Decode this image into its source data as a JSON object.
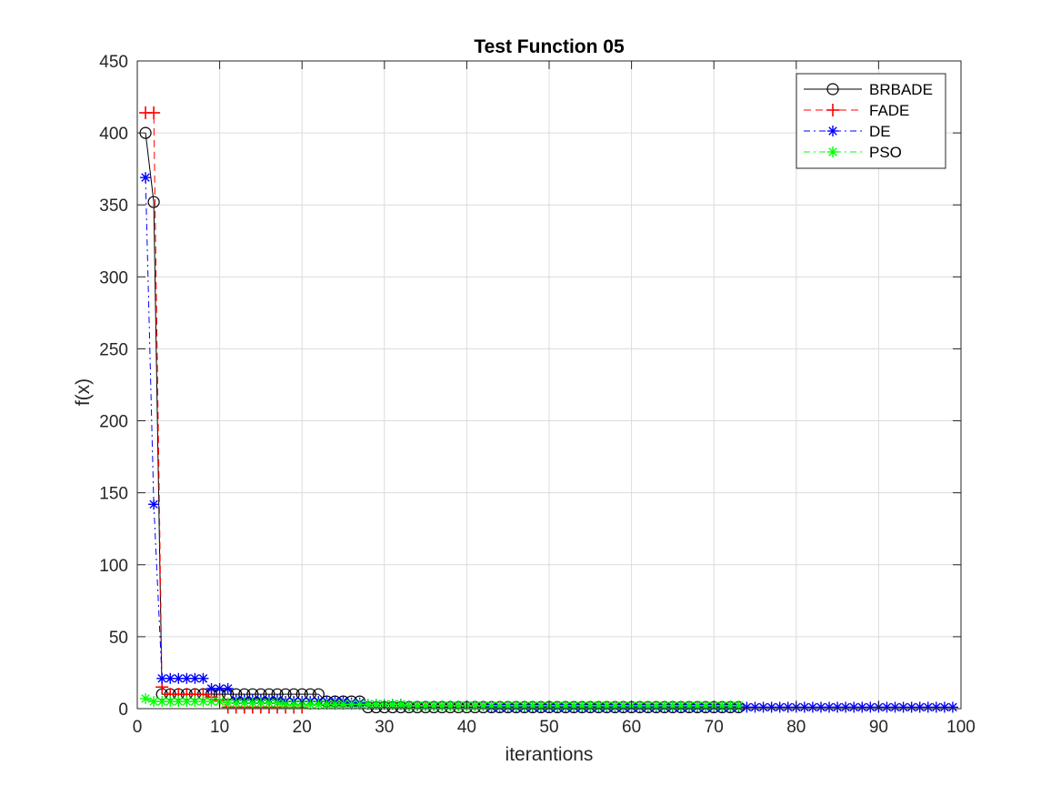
{
  "chart_data": {
    "type": "line",
    "title": "Test Function 05",
    "xlabel": "iterantions",
    "ylabel": "f(x)",
    "xlim": [
      0,
      100
    ],
    "ylim": [
      0,
      450
    ],
    "xticks": [
      0,
      10,
      20,
      30,
      40,
      50,
      60,
      70,
      80,
      90,
      100
    ],
    "yticks": [
      0,
      50,
      100,
      150,
      200,
      250,
      300,
      350,
      400,
      450
    ],
    "xtick_labels": [
      "0",
      "10",
      "20",
      "30",
      "40",
      "50",
      "60",
      "70",
      "80",
      "90",
      "100"
    ],
    "ytick_labels": [
      "0",
      "50",
      "100",
      "150",
      "200",
      "250",
      "300",
      "350",
      "400",
      "450"
    ],
    "grid": true,
    "legend_position": "top-right",
    "series": [
      {
        "name": "BRBADE",
        "color": "#000000",
        "line_style": "solid",
        "marker": "circle",
        "x": [
          1,
          2,
          3,
          4,
          5,
          6,
          7,
          8,
          9,
          10,
          11,
          12,
          13,
          14,
          15,
          16,
          17,
          18,
          19,
          20,
          21,
          22,
          23,
          24,
          25,
          26,
          27,
          28,
          29,
          30,
          31,
          32,
          33,
          34,
          35,
          36,
          37,
          38,
          39,
          40,
          41,
          42,
          43,
          44,
          45,
          46,
          47,
          48,
          49,
          50,
          51,
          52,
          53,
          54,
          55,
          56,
          57,
          58,
          59,
          60,
          61,
          62,
          63,
          64,
          65,
          66,
          67,
          68,
          69,
          70,
          71,
          72,
          73
        ],
        "y": [
          400,
          352,
          10,
          10,
          10,
          10,
          10,
          10,
          10,
          10,
          10,
          10,
          10,
          10,
          10,
          10,
          10,
          10,
          10,
          10,
          10,
          10,
          5,
          5,
          5,
          5,
          5,
          1,
          1,
          1,
          1,
          1,
          1,
          1,
          1,
          1,
          1,
          1,
          1,
          1,
          1,
          1,
          1,
          1,
          1,
          1,
          1,
          1,
          1,
          1,
          1,
          1,
          1,
          1,
          1,
          1,
          1,
          1,
          1,
          1,
          1,
          1,
          1,
          1,
          1,
          1,
          1,
          1,
          1,
          1,
          1,
          1,
          1
        ]
      },
      {
        "name": "FADE",
        "color": "#ff0000",
        "line_style": "dashed",
        "marker": "plus",
        "x": [
          1,
          2,
          3,
          4,
          5,
          6,
          7,
          8,
          9,
          10,
          11,
          12,
          13,
          14,
          15,
          16,
          17,
          18,
          19,
          20
        ],
        "y": [
          414,
          414,
          15,
          10,
          10,
          10,
          10,
          10,
          8,
          6,
          1,
          1,
          1,
          1,
          1,
          1,
          1,
          1,
          1,
          1
        ]
      },
      {
        "name": "DE",
        "color": "#0000ff",
        "line_style": "dashdot",
        "marker": "asterisk",
        "x": [
          1,
          2,
          3,
          4,
          5,
          6,
          7,
          8,
          9,
          10,
          11,
          12,
          13,
          14,
          15,
          16,
          17,
          18,
          19,
          20,
          21,
          22,
          23,
          24,
          25,
          26,
          27,
          28,
          29,
          30,
          31,
          32,
          33,
          34,
          35,
          36,
          37,
          38,
          39,
          40,
          41,
          42,
          43,
          44,
          45,
          46,
          47,
          48,
          49,
          50,
          51,
          52,
          53,
          54,
          55,
          56,
          57,
          58,
          59,
          60,
          61,
          62,
          63,
          64,
          65,
          66,
          67,
          68,
          69,
          70,
          71,
          72,
          73,
          74,
          75,
          76,
          77,
          78,
          79,
          80,
          81,
          82,
          83,
          84,
          85,
          86,
          87,
          88,
          89,
          90,
          91,
          92,
          93,
          94,
          95,
          96,
          97,
          98,
          99
        ],
        "y": [
          369,
          142,
          21,
          21,
          21,
          21,
          21,
          21,
          14,
          14,
          14,
          6,
          6,
          6,
          6,
          6,
          6,
          5,
          5,
          5,
          5,
          5,
          5,
          5,
          5,
          4,
          4,
          3,
          3,
          3,
          3,
          3,
          2,
          2,
          2,
          2,
          2,
          2,
          2,
          2,
          2,
          2,
          1,
          1,
          1,
          1,
          1,
          1,
          1,
          1,
          1,
          1,
          1,
          1,
          1,
          1,
          1,
          1,
          1,
          1,
          1,
          1,
          1,
          1,
          1,
          1,
          1,
          1,
          1,
          1,
          1,
          1,
          1,
          1,
          1,
          1,
          1,
          1,
          1,
          1,
          1,
          1,
          1,
          1,
          1,
          1,
          1,
          1,
          1,
          1,
          1,
          1,
          1,
          1,
          1,
          1,
          1,
          1,
          1
        ]
      },
      {
        "name": "PSO",
        "color": "#00ff00",
        "line_style": "dashdot",
        "marker": "asterisk",
        "x": [
          1,
          2,
          3,
          4,
          5,
          6,
          7,
          8,
          9,
          10,
          11,
          12,
          13,
          14,
          15,
          16,
          17,
          18,
          19,
          20,
          21,
          22,
          23,
          24,
          25,
          26,
          27,
          28,
          29,
          30,
          31,
          32,
          33,
          34,
          35,
          36,
          37,
          38,
          39,
          40,
          41,
          42,
          43,
          44,
          45,
          46,
          47,
          48,
          49,
          50,
          51,
          52,
          53,
          54,
          55,
          56,
          57,
          58,
          59,
          60,
          61,
          62,
          63,
          64,
          65,
          66,
          67,
          68,
          69,
          70,
          71,
          72,
          73
        ],
        "y": [
          7,
          5,
          5,
          5,
          5,
          5,
          5,
          5,
          5,
          5,
          4,
          4,
          4,
          4,
          4,
          4,
          4,
          3,
          3,
          3,
          3,
          3,
          3,
          3,
          3,
          3,
          3,
          3,
          3,
          3,
          3,
          3,
          2,
          2,
          2,
          2,
          2,
          2,
          2,
          2,
          2,
          2,
          2,
          2,
          2,
          2,
          2,
          2,
          2,
          2,
          2,
          2,
          2,
          2,
          2,
          2,
          2,
          2,
          2,
          2,
          2,
          2,
          2,
          2,
          2,
          2,
          2,
          2,
          2,
          2,
          2,
          2,
          2
        ]
      }
    ]
  }
}
